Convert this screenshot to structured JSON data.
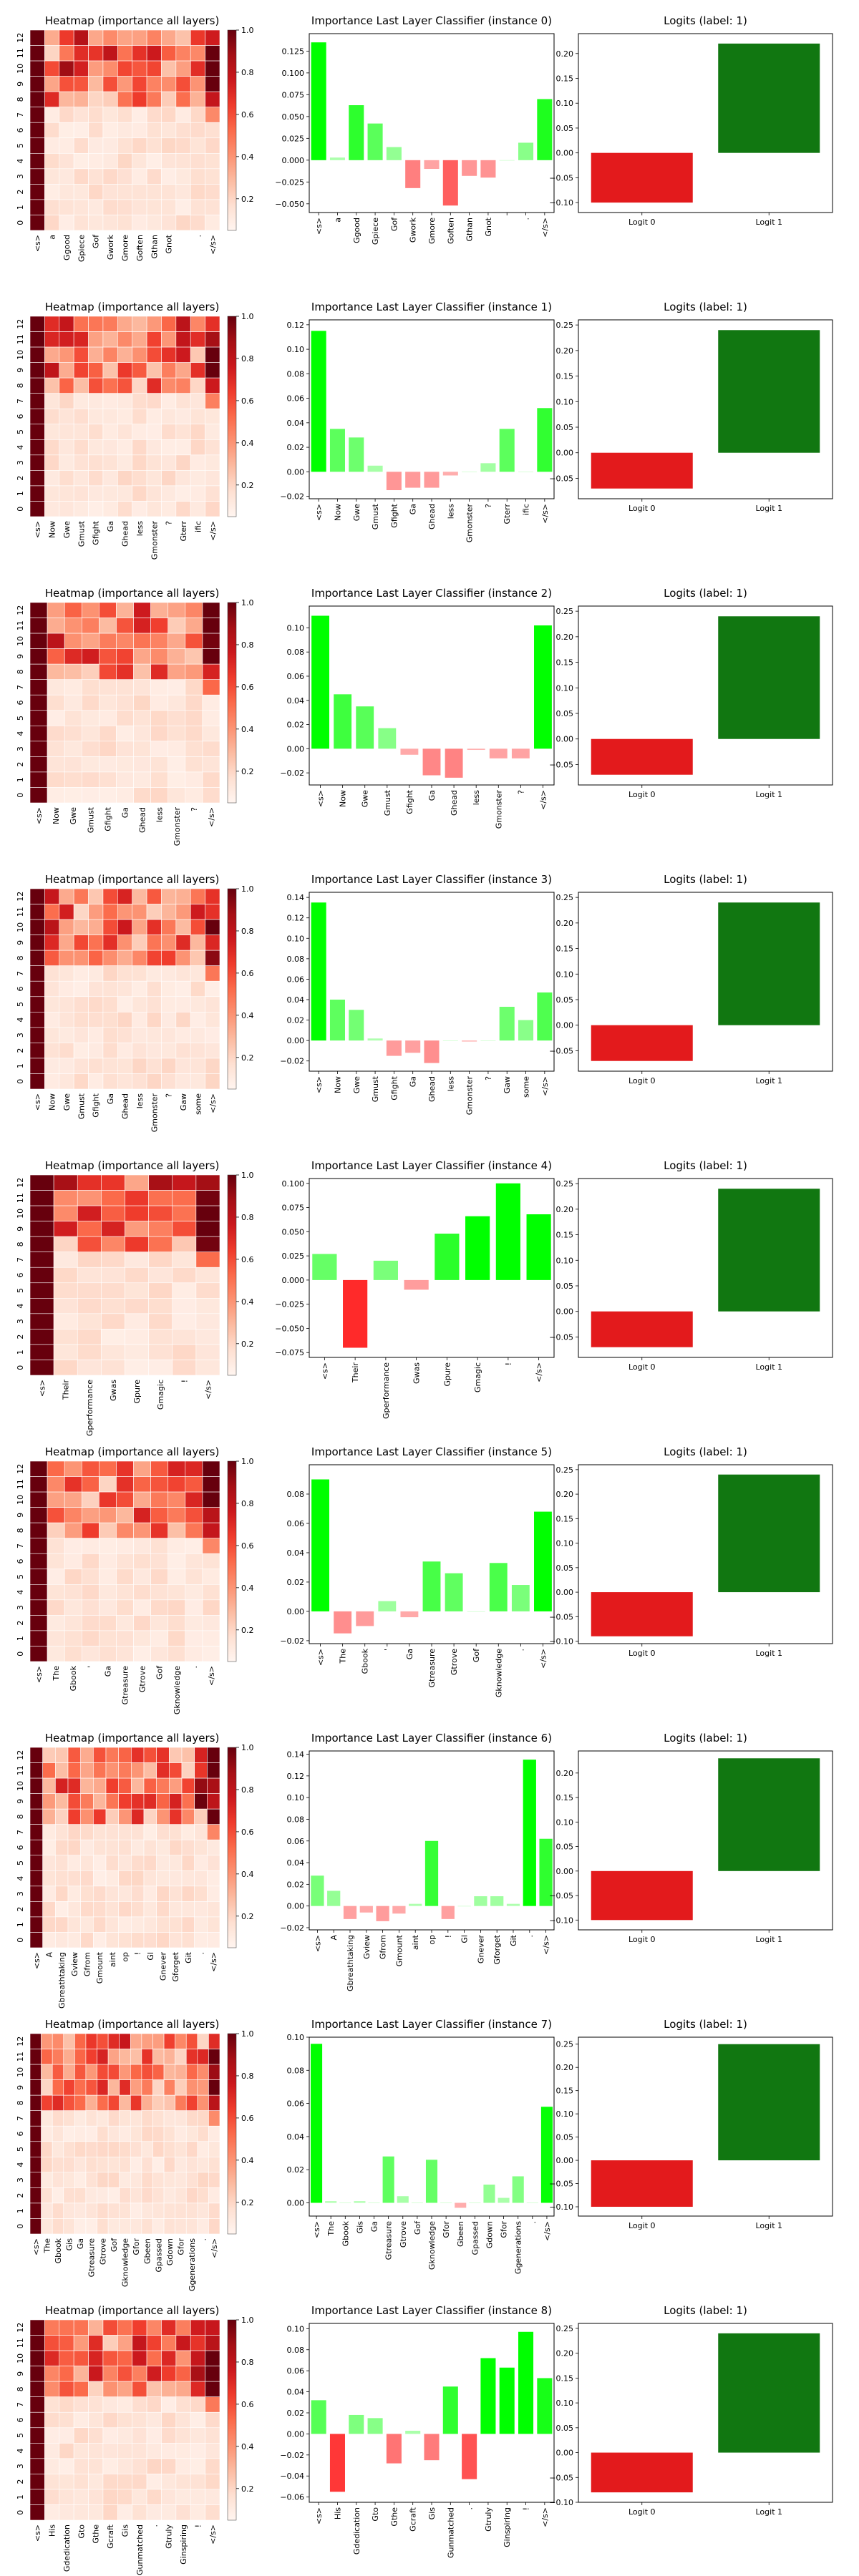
{
  "chart_data": [
    {
      "type": "heatmap",
      "row": 0,
      "title": "Heatmap (importance all layers)",
      "layers": [
        "0",
        "1",
        "2",
        "3",
        "4",
        "5",
        "6",
        "7",
        "8",
        "9",
        "10",
        "11",
        "12"
      ],
      "tokens": [
        "<s>",
        "a",
        "Ggood",
        "Gpiece",
        "Gof",
        "Gwork",
        "Gmore",
        "Goften",
        "Gthan",
        "Gnot",
        "",
        ".",
        "</s>"
      ],
      "colorbar_ticks": [
        "0.2",
        "0.4",
        "0.6",
        "0.8",
        "1.0"
      ]
    },
    {
      "type": "bar",
      "row": 0,
      "title": "Importance Last Layer Classifier (instance 0)",
      "categories": [
        "<s>",
        "a",
        "Ggood",
        "Gpiece",
        "Gof",
        "Gwork",
        "Gmore",
        "Goften",
        "Gthan",
        "Gnot",
        "",
        ".",
        "</s>"
      ],
      "values": [
        0.135,
        0.003,
        0.063,
        0.042,
        0.015,
        -0.032,
        -0.01,
        -0.052,
        -0.018,
        -0.02,
        0.0,
        0.02,
        0.07
      ],
      "ylim": [
        -0.06,
        0.145
      ],
      "yticks": [
        -0.05,
        -0.025,
        0.0,
        0.025,
        0.05,
        0.075,
        0.1,
        0.125
      ],
      "ytick_labels": [
        "−0.050",
        "−0.025",
        "0.000",
        "0.025",
        "0.050",
        "0.075",
        "0.100",
        "0.125"
      ]
    },
    {
      "type": "bar",
      "row": 0,
      "title": "Logits (label: 1)",
      "categories": [
        "Logit 0",
        "Logit 1"
      ],
      "values": [
        -0.1,
        0.22
      ],
      "ylim": [
        -0.12,
        0.24
      ],
      "yticks": [
        -0.1,
        -0.05,
        0.0,
        0.05,
        0.1,
        0.15,
        0.2
      ],
      "ytick_labels": [
        "−0.10",
        "−0.05",
        "0.00",
        "0.05",
        "0.10",
        "0.15",
        "0.20"
      ]
    },
    {
      "type": "heatmap",
      "row": 1,
      "title": "Heatmap (importance all layers)",
      "layers": [
        "0",
        "1",
        "2",
        "3",
        "4",
        "5",
        "6",
        "7",
        "8",
        "9",
        "10",
        "11",
        "12"
      ],
      "tokens": [
        "<s>",
        "Now",
        "Gwe",
        "Gmust",
        "Gfight",
        "Ga",
        "Ghead",
        "less",
        "Gmonster",
        "?",
        "Gterr",
        "ific",
        "</s>"
      ],
      "colorbar_ticks": [
        "0.2",
        "0.4",
        "0.6",
        "0.8",
        "1.0"
      ]
    },
    {
      "type": "bar",
      "row": 1,
      "title": "Importance Last Layer Classifier (instance 1)",
      "categories": [
        "<s>",
        "Now",
        "Gwe",
        "Gmust",
        "Gfight",
        "Ga",
        "Ghead",
        "less",
        "Gmonster",
        "?",
        "Gterr",
        "ific",
        "</s>"
      ],
      "values": [
        0.115,
        0.035,
        0.028,
        0.005,
        -0.015,
        -0.013,
        -0.013,
        -0.003,
        0.0,
        0.007,
        0.035,
        0.0,
        0.052
      ],
      "ylim": [
        -0.022,
        0.124
      ],
      "yticks": [
        -0.02,
        0.0,
        0.02,
        0.04,
        0.06,
        0.08,
        0.1,
        0.12
      ],
      "ytick_labels": [
        "−0.02",
        "0.00",
        "0.02",
        "0.04",
        "0.06",
        "0.08",
        "0.10",
        "0.12"
      ]
    },
    {
      "type": "bar",
      "row": 1,
      "title": "Logits (label: 1)",
      "categories": [
        "Logit 0",
        "Logit 1"
      ],
      "values": [
        -0.07,
        0.24
      ],
      "ylim": [
        -0.09,
        0.26
      ],
      "yticks": [
        -0.05,
        0.0,
        0.05,
        0.1,
        0.15,
        0.2,
        0.25
      ],
      "ytick_labels": [
        "−0.05",
        "0.00",
        "0.05",
        "0.10",
        "0.15",
        "0.20",
        "0.25"
      ]
    },
    {
      "type": "heatmap",
      "row": 2,
      "title": "Heatmap (importance all layers)",
      "layers": [
        "0",
        "1",
        "2",
        "3",
        "4",
        "5",
        "6",
        "7",
        "8",
        "9",
        "10",
        "11",
        "12"
      ],
      "tokens": [
        "<s>",
        "Now",
        "Gwe",
        "Gmust",
        "Gfight",
        "Ga",
        "Ghead",
        "less",
        "Gmonster",
        "?",
        "</s>"
      ],
      "colorbar_ticks": [
        "0.2",
        "0.4",
        "0.6",
        "0.8",
        "1.0"
      ]
    },
    {
      "type": "bar",
      "row": 2,
      "title": "Importance Last Layer Classifier (instance 2)",
      "categories": [
        "<s>",
        "Now",
        "Gwe",
        "Gmust",
        "Gfight",
        "Ga",
        "Ghead",
        "less",
        "Gmonster",
        "?",
        "</s>"
      ],
      "values": [
        0.11,
        0.045,
        0.035,
        0.017,
        -0.005,
        -0.022,
        -0.024,
        -0.001,
        -0.008,
        -0.008,
        0.102
      ],
      "ylim": [
        -0.03,
        0.118
      ],
      "yticks": [
        -0.02,
        0.0,
        0.02,
        0.04,
        0.06,
        0.08,
        0.1
      ],
      "ytick_labels": [
        "−0.02",
        "0.00",
        "0.02",
        "0.04",
        "0.06",
        "0.08",
        "0.10"
      ]
    },
    {
      "type": "bar",
      "row": 2,
      "title": "Logits (label: 1)",
      "categories": [
        "Logit 0",
        "Logit 1"
      ],
      "values": [
        -0.07,
        0.24
      ],
      "ylim": [
        -0.09,
        0.26
      ],
      "yticks": [
        -0.05,
        0.0,
        0.05,
        0.1,
        0.15,
        0.2,
        0.25
      ],
      "ytick_labels": [
        "−0.05",
        "0.00",
        "0.05",
        "0.10",
        "0.15",
        "0.20",
        "0.25"
      ]
    },
    {
      "type": "heatmap",
      "row": 3,
      "title": "Heatmap (importance all layers)",
      "layers": [
        "0",
        "1",
        "2",
        "3",
        "4",
        "5",
        "6",
        "7",
        "8",
        "9",
        "10",
        "11",
        "12"
      ],
      "tokens": [
        "<s>",
        "Now",
        "Gwe",
        "Gmust",
        "Gfight",
        "Ga",
        "Ghead",
        "less",
        "Gmonster",
        "?",
        "Gaw",
        "some",
        "</s>"
      ],
      "colorbar_ticks": [
        "0.2",
        "0.4",
        "0.6",
        "0.8",
        "1.0"
      ]
    },
    {
      "type": "bar",
      "row": 3,
      "title": "Importance Last Layer Classifier (instance 3)",
      "categories": [
        "<s>",
        "Now",
        "Gwe",
        "Gmust",
        "Gfight",
        "Ga",
        "Ghead",
        "less",
        "Gmonster",
        "?",
        "Gaw",
        "some",
        "</s>"
      ],
      "values": [
        0.135,
        0.04,
        0.03,
        0.002,
        -0.015,
        -0.012,
        -0.022,
        0.0,
        -0.001,
        0.0,
        0.033,
        0.02,
        0.047
      ],
      "ylim": [
        -0.03,
        0.145
      ],
      "yticks": [
        -0.02,
        0.0,
        0.02,
        0.04,
        0.06,
        0.08,
        0.1,
        0.12,
        0.14
      ],
      "ytick_labels": [
        "−0.02",
        "0.00",
        "0.02",
        "0.04",
        "0.06",
        "0.08",
        "0.10",
        "0.12",
        "0.14"
      ]
    },
    {
      "type": "bar",
      "row": 3,
      "title": "Logits (label: 1)",
      "categories": [
        "Logit 0",
        "Logit 1"
      ],
      "values": [
        -0.07,
        0.24
      ],
      "ylim": [
        -0.09,
        0.26
      ],
      "yticks": [
        -0.05,
        0.0,
        0.05,
        0.1,
        0.15,
        0.2,
        0.25
      ],
      "ytick_labels": [
        "−0.05",
        "0.00",
        "0.05",
        "0.10",
        "0.15",
        "0.20",
        "0.25"
      ]
    },
    {
      "type": "heatmap",
      "row": 4,
      "title": "Heatmap (importance all layers)",
      "layers": [
        "0",
        "1",
        "2",
        "3",
        "4",
        "5",
        "6",
        "7",
        "8",
        "9",
        "10",
        "11",
        "12"
      ],
      "tokens": [
        "<s>",
        "Their",
        "Gperformance",
        "Gwas",
        "Gpure",
        "Gmagic",
        "!",
        "</s>"
      ],
      "colorbar_ticks": [
        "0.2",
        "0.4",
        "0.6",
        "0.8",
        "1.0"
      ]
    },
    {
      "type": "bar",
      "row": 4,
      "title": "Importance Last Layer Classifier (instance 4)",
      "categories": [
        "<s>",
        "Their",
        "Gperformance",
        "Gwas",
        "Gpure",
        "Gmagic",
        "!",
        "</s>"
      ],
      "values": [
        0.027,
        -0.07,
        0.02,
        -0.01,
        0.048,
        0.066,
        0.1,
        0.068
      ],
      "ylim": [
        -0.08,
        0.105
      ],
      "yticks": [
        -0.075,
        -0.05,
        -0.025,
        0.0,
        0.025,
        0.05,
        0.075,
        0.1
      ],
      "ytick_labels": [
        "−0.075",
        "−0.050",
        "−0.025",
        "0.000",
        "0.025",
        "0.050",
        "0.075",
        "0.100"
      ]
    },
    {
      "type": "bar",
      "row": 4,
      "title": "Logits (label: 1)",
      "categories": [
        "Logit 0",
        "Logit 1"
      ],
      "values": [
        -0.07,
        0.24
      ],
      "ylim": [
        -0.09,
        0.26
      ],
      "yticks": [
        -0.05,
        0.0,
        0.05,
        0.1,
        0.15,
        0.2,
        0.25
      ],
      "ytick_labels": [
        "−0.05",
        "0.00",
        "0.05",
        "0.10",
        "0.15",
        "0.20",
        "0.25"
      ]
    },
    {
      "type": "heatmap",
      "row": 5,
      "title": "Heatmap (importance all layers)",
      "layers": [
        "0",
        "1",
        "2",
        "3",
        "4",
        "5",
        "6",
        "7",
        "8",
        "9",
        "10",
        "11",
        "12"
      ],
      "tokens": [
        "<s>",
        "The",
        "Gbook",
        "'",
        "Ga",
        "Gtreasure",
        "Gtrove",
        "Gof",
        "Gknowledge",
        ".",
        "</s>"
      ],
      "colorbar_ticks": [
        "0.2",
        "0.4",
        "0.6",
        "0.8",
        "1.0"
      ]
    },
    {
      "type": "bar",
      "row": 5,
      "title": "Importance Last Layer Classifier (instance 5)",
      "categories": [
        "<s>",
        "The",
        "Gbook",
        "'",
        "Ga",
        "Gtreasure",
        "Gtrove",
        "Gof",
        "Gknowledge",
        ".",
        "</s>"
      ],
      "values": [
        0.09,
        -0.015,
        -0.01,
        0.007,
        -0.004,
        0.034,
        0.026,
        0.0,
        0.033,
        0.018,
        0.068
      ],
      "ylim": [
        -0.022,
        0.1
      ],
      "yticks": [
        -0.02,
        0.0,
        0.02,
        0.04,
        0.06,
        0.08
      ],
      "ytick_labels": [
        "−0.02",
        "0.00",
        "0.02",
        "0.04",
        "0.06",
        "0.08"
      ]
    },
    {
      "type": "bar",
      "row": 5,
      "title": "Logits (label: 1)",
      "categories": [
        "Logit 0",
        "Logit 1"
      ],
      "values": [
        -0.09,
        0.24
      ],
      "ylim": [
        -0.105,
        0.26
      ],
      "yticks": [
        -0.1,
        -0.05,
        0.0,
        0.05,
        0.1,
        0.15,
        0.2,
        0.25
      ],
      "ytick_labels": [
        "−0.10",
        "−0.05",
        "0.00",
        "0.05",
        "0.10",
        "0.15",
        "0.20",
        "0.25"
      ]
    },
    {
      "type": "heatmap",
      "row": 6,
      "title": "Heatmap (importance all layers)",
      "layers": [
        "0",
        "1",
        "2",
        "3",
        "4",
        "5",
        "6",
        "7",
        "8",
        "9",
        "10",
        "11",
        "12"
      ],
      "tokens": [
        "<s>",
        "A",
        "Gbreathtaking",
        "Gview",
        "Gfrom",
        "Gmount",
        "aint",
        "op",
        "!",
        "Gl",
        "Gnever",
        "Gforget",
        "Git",
        ".",
        "</s>"
      ],
      "colorbar_ticks": [
        "0.2",
        "0.4",
        "0.6",
        "0.8",
        "1.0"
      ]
    },
    {
      "type": "bar",
      "row": 6,
      "title": "Importance Last Layer Classifier (instance 6)",
      "categories": [
        "<s>",
        "A",
        "Gbreathtaking",
        "Gview",
        "Gfrom",
        "Gmount",
        "aint",
        "op",
        "!",
        "Gl",
        "Gnever",
        "Gforget",
        "Git",
        ".",
        "</s>"
      ],
      "values": [
        0.028,
        0.014,
        -0.012,
        -0.006,
        -0.014,
        -0.007,
        0.002,
        0.06,
        -0.012,
        0.0,
        0.009,
        0.009,
        0.002,
        0.135,
        0.062
      ],
      "ylim": [
        -0.022,
        0.143
      ],
      "yticks": [
        -0.02,
        0.0,
        0.02,
        0.04,
        0.06,
        0.08,
        0.1,
        0.12,
        0.14
      ],
      "ytick_labels": [
        "−0.02",
        "0.00",
        "0.02",
        "0.04",
        "0.06",
        "0.08",
        "0.10",
        "0.12",
        "0.14"
      ]
    },
    {
      "type": "bar",
      "row": 6,
      "title": "Logits (label: 1)",
      "categories": [
        "Logit 0",
        "Logit 1"
      ],
      "values": [
        -0.1,
        0.23
      ],
      "ylim": [
        -0.12,
        0.245
      ],
      "yticks": [
        -0.1,
        -0.05,
        0.0,
        0.05,
        0.1,
        0.15,
        0.2
      ],
      "ytick_labels": [
        "−0.10",
        "−0.05",
        "0.00",
        "0.05",
        "0.10",
        "0.15",
        "0.20"
      ]
    },
    {
      "type": "heatmap",
      "row": 7,
      "title": "Heatmap (importance all layers)",
      "layers": [
        "0",
        "1",
        "2",
        "3",
        "4",
        "5",
        "6",
        "7",
        "8",
        "9",
        "10",
        "11",
        "12"
      ],
      "tokens": [
        "<s>",
        "The",
        "Gbook",
        "Gis",
        "Ga",
        "Gtreasure",
        "Gtrove",
        "Gof",
        "Gknowledge",
        "Gfor",
        "Gbeen",
        "Gpassed",
        "Gdown",
        "Gfor",
        "Ggenerations",
        ".",
        "</s>"
      ],
      "colorbar_ticks": [
        "0.2",
        "0.4",
        "0.6",
        "0.8",
        "1.0"
      ]
    },
    {
      "type": "bar",
      "row": 7,
      "title": "Importance Last Layer Classifier (instance 7)",
      "categories": [
        "<s>",
        "The",
        "Gbook",
        "Gis",
        "Ga",
        "Gtreasure",
        "Gtrove",
        "Gof",
        "Gknowledge",
        "Gfor",
        "Gbeen",
        "Gpassed",
        "Gdown",
        "Gfor",
        "Ggenerations",
        ".",
        "</s>"
      ],
      "values": [
        0.096,
        0.001,
        0.0,
        0.001,
        0.0,
        0.028,
        0.004,
        0.0,
        0.026,
        0.0,
        -0.003,
        0.0,
        0.011,
        0.003,
        0.016,
        0.0,
        0.058
      ],
      "ylim": [
        -0.008,
        0.1
      ],
      "yticks": [
        0.0,
        0.02,
        0.04,
        0.06,
        0.08,
        0.1
      ],
      "ytick_labels": [
        "0.00",
        "0.02",
        "0.04",
        "0.06",
        "0.08",
        "0.10"
      ]
    },
    {
      "type": "bar",
      "row": 7,
      "title": "Logits (label: 1)",
      "categories": [
        "Logit 0",
        "Logit 1"
      ],
      "values": [
        -0.1,
        0.25
      ],
      "ylim": [
        -0.12,
        0.265
      ],
      "yticks": [
        -0.1,
        -0.05,
        0.0,
        0.05,
        0.1,
        0.15,
        0.2,
        0.25
      ],
      "ytick_labels": [
        "−0.10",
        "−0.05",
        "0.00",
        "0.05",
        "0.10",
        "0.15",
        "0.20",
        "0.25"
      ]
    },
    {
      "type": "heatmap",
      "row": 8,
      "title": "Heatmap (importance all layers)",
      "layers": [
        "0",
        "1",
        "2",
        "3",
        "4",
        "5",
        "6",
        "7",
        "8",
        "9",
        "10",
        "11",
        "12"
      ],
      "tokens": [
        "<s>",
        "His",
        "Gdedication",
        "Gto",
        "Gthe",
        "Gcraft",
        "Gis",
        "Gunmatched",
        ".",
        "Gtruly",
        "Ginspiring",
        "!",
        "</s>"
      ],
      "colorbar_ticks": [
        "0.2",
        "0.4",
        "0.6",
        "0.8",
        "1.0"
      ]
    },
    {
      "type": "bar",
      "row": 8,
      "title": "Importance Last Layer Classifier (instance 8)",
      "categories": [
        "<s>",
        "His",
        "Gdedication",
        "Gto",
        "Gthe",
        "Gcraft",
        "Gis",
        "Gunmatched",
        ".",
        "Gtruly",
        "Ginspiring",
        "!",
        "</s>"
      ],
      "values": [
        0.032,
        -0.055,
        0.018,
        0.015,
        -0.028,
        0.003,
        -0.025,
        0.045,
        -0.043,
        0.072,
        0.063,
        0.097,
        0.053
      ],
      "ylim": [
        -0.065,
        0.105
      ],
      "yticks": [
        -0.06,
        -0.04,
        -0.02,
        0.0,
        0.02,
        0.04,
        0.06,
        0.08,
        0.1
      ],
      "ytick_labels": [
        "−0.06",
        "−0.04",
        "−0.02",
        "0.00",
        "0.02",
        "0.04",
        "0.06",
        "0.08",
        "0.10"
      ]
    },
    {
      "type": "bar",
      "row": 8,
      "title": "Logits (label: 1)",
      "categories": [
        "Logit 0",
        "Logit 1"
      ],
      "values": [
        -0.08,
        0.24
      ],
      "ylim": [
        -0.1,
        0.26
      ],
      "yticks": [
        -0.1,
        -0.05,
        0.0,
        0.05,
        0.1,
        0.15,
        0.2,
        0.25
      ],
      "ytick_labels": [
        "−0.10",
        "−0.05",
        "0.00",
        "0.05",
        "0.10",
        "0.15",
        "0.20",
        "0.25"
      ]
    }
  ],
  "colors": {
    "positive_strong": "#00ff00",
    "positive_light": "#b3ffb3",
    "negative_strong": "#ff2a2a",
    "negative_light": "#ffb3b3",
    "logit_negative": "#e31a1c",
    "logit_positive": "#117711",
    "heat_low": "#fff5f0",
    "heat_high": "#67000d"
  }
}
